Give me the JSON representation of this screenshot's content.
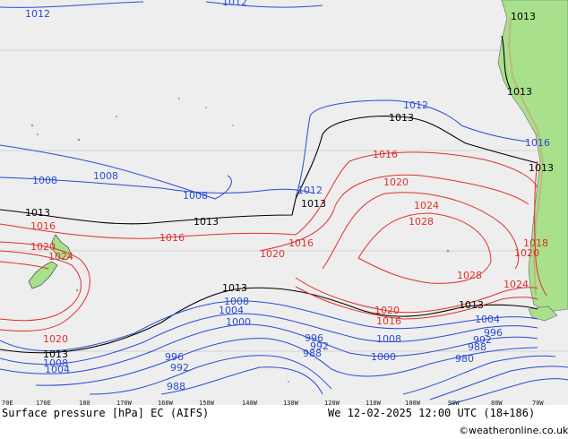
{
  "caption": {
    "left": "Surface pressure [hPa] EC (AIFS)",
    "right": "We 12-02-2025 12:00 UTC (18+186)",
    "credit": "©weatheronline.co.uk"
  },
  "longitude_ticks": [
    "70E",
    "170E",
    "180",
    "170W",
    "160W",
    "150W",
    "140W",
    "130W",
    "120W",
    "110W",
    "100W",
    "90W",
    "80W",
    "70W"
  ],
  "colors": {
    "ocean": "#eeeeee",
    "land": "#a8e08c",
    "low_isobar": "#2a4bd7",
    "high_isobar": "#e0302a",
    "ref_isobar": "#000000"
  },
  "isobar_labels": {
    "top_left_1012": "1012",
    "top_1012": "1012",
    "top_right_1013": "1013",
    "left_1008": "1008",
    "mid_1008": "1008",
    "mid_1008b": "1008",
    "center_1012": "1012",
    "center_1013": "1013",
    "nw_1013": "1013",
    "mid_1013": "1013",
    "east_1012": "1012",
    "east_1013": "1013",
    "coast_1013a": "1013",
    "coast_1016": "1016",
    "coast_1013b": "1013",
    "nz_1016": "1016",
    "nz_1020": "1020",
    "nz_1024": "1024",
    "mid_1016": "1016",
    "high_1016": "1016",
    "high_1016b": "1016",
    "high_1020": "1020",
    "high_1020b": "1020",
    "high_1024": "1024",
    "high_1028": "1028",
    "high_1028b": "1028",
    "high_1024b": "1024",
    "coast_1020": "1020",
    "coast_1018": "1018",
    "south_1020": "1020",
    "south_1016": "1016",
    "s_1013": "1013",
    "s_1013b": "1013",
    "s_1008": "1008",
    "s_1004": "1004",
    "s_1000": "1000",
    "sw_1020": "1020",
    "sw_1013": "1013",
    "sw_1008": "1008",
    "sw_1004": "1004",
    "s_996": "996",
    "s_992": "992",
    "s_988": "988",
    "sw_996": "996",
    "sw_992": "992",
    "sw_988": "988",
    "se_1008": "1008",
    "se_1000": "1000",
    "se_1004": "1004",
    "se_996": "996",
    "se_992": "992",
    "se_988": "988",
    "se_980": "980"
  }
}
